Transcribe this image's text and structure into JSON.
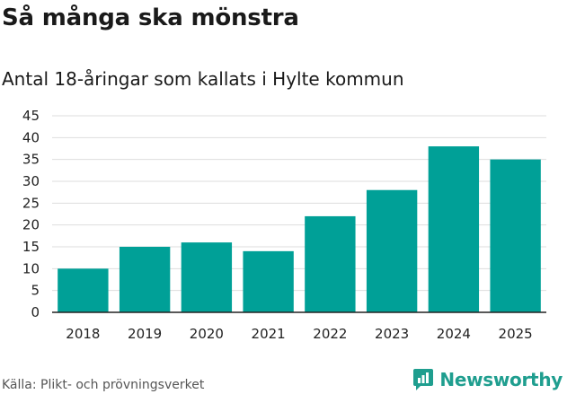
{
  "header": {
    "title": "Så många ska mönstra",
    "subtitle": "Antal 18-åringar som kallats i Hylte kommun"
  },
  "footer": {
    "source": "Källa: Plikt- och prövningsverket",
    "brand": "Newsworthy",
    "brand_icon": "bar-chart-logo-icon"
  },
  "colors": {
    "bar": "#00a097",
    "grid": "#dddddd",
    "axis": "#222222",
    "brand": "#1f9e8f"
  },
  "chart_data": {
    "type": "bar",
    "title": "Så många ska mönstra",
    "subtitle": "Antal 18-åringar som kallats i Hylte kommun",
    "xlabel": "",
    "ylabel": "",
    "categories": [
      "2018",
      "2019",
      "2020",
      "2021",
      "2022",
      "2023",
      "2024",
      "2025"
    ],
    "values": [
      10,
      15,
      16,
      14,
      22,
      28,
      38,
      35
    ],
    "ylim": [
      0,
      45
    ],
    "yticks": [
      0,
      5,
      10,
      15,
      20,
      25,
      30,
      35,
      40,
      45
    ],
    "grid": true,
    "legend": "none"
  }
}
